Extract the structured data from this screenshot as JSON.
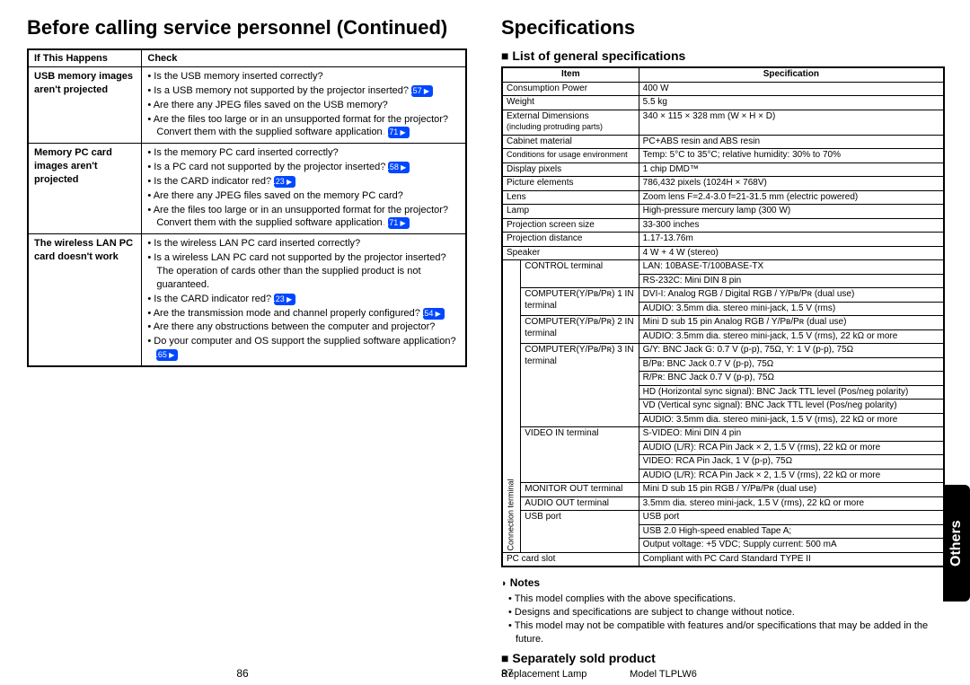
{
  "left": {
    "title": "Before calling service personnel (Continued)",
    "pageNum": "86",
    "headers": {
      "col1": "If  This Happens",
      "col2": "Check"
    },
    "rows": [
      {
        "issue": "USB memory images aren't projected",
        "checks": [
          {
            "t": "Is the USB memory inserted correctly?"
          },
          {
            "t": "Is a USB memory not supported by the projector inserted?",
            "ref": "p.57"
          },
          {
            "t": "Are there any JPEG files saved on the USB memory?"
          },
          {
            "t": "Are the files too large or in an unsupported format for the projector? Convert them with the supplied software application.",
            "ref": "p.71"
          }
        ]
      },
      {
        "issue": "Memory PC card images aren't projected",
        "checks": [
          {
            "t": "Is the memory PC card inserted correctly?"
          },
          {
            "t": "Is a PC card not supported by the projector inserted?",
            "ref": "p.58"
          },
          {
            "t": "Is the CARD indicator red?",
            "ref": "p.23"
          },
          {
            "t": "Are there any JPEG files saved on the memory PC card?"
          },
          {
            "t": "Are the files too large or in an unsupported format for the projector? Convert them with the supplied software application.",
            "ref": "p.71"
          }
        ]
      },
      {
        "issue": "The wireless LAN PC card doesn't work",
        "checks": [
          {
            "t": "Is the wireless LAN PC card inserted correctly?"
          },
          {
            "t": "Is a wireless LAN PC card not supported by the projector inserted? The operation of cards other than the supplied product is not guaranteed."
          },
          {
            "t": "Is the CARD indicator red?",
            "ref": "p.23"
          },
          {
            "t": "Are the transmission mode and channel properly configured?",
            "ref": "p.54"
          },
          {
            "t": "Are there any obstructions between the computer and projector?"
          },
          {
            "t": "Do your computer and OS support the supplied software application?",
            "ref": "p.65"
          }
        ]
      }
    ]
  },
  "right": {
    "title": "Specifications",
    "pageNum": "87",
    "tab": "Others",
    "sub1": "List of general specifications",
    "headers": {
      "col1": "Item",
      "col2": "Specification"
    },
    "rows": [
      {
        "i": "Consumption Power",
        "v": "400 W"
      },
      {
        "i": "Weight",
        "v": "5.5 kg"
      },
      {
        "i": "External Dimensions",
        "isub": "(including protruding parts)",
        "v": "340 × 115 × 328 mm (W × H × D)"
      },
      {
        "i": "Cabinet material",
        "v": "PC+ABS resin and ABS resin"
      },
      {
        "i": "Conditions for usage environment",
        "small": true,
        "v": "Temp: 5°C to 35°C; relative humidity: 30% to 70%"
      },
      {
        "i": "Display pixels",
        "v": "1 chip DMD™"
      },
      {
        "i": "Picture elements",
        "v": "786,432 pixels (1024H × 768V)"
      },
      {
        "i": "Lens",
        "v": "Zoom lens      F=2.4-3.0   f=21-31.5 mm (electric powered)"
      },
      {
        "i": "Lamp",
        "v": "High-pressure mercury lamp (300 W)"
      },
      {
        "i": "Projection screen size",
        "v": "33-300 inches"
      },
      {
        "i": "Projection distance",
        "v": "1.17-13.76m"
      },
      {
        "i": "Speaker",
        "v": "4 W + 4 W (stereo)"
      }
    ],
    "connLabel": "Connection terminal",
    "conn": [
      {
        "i": "CONTROL terminal",
        "v": [
          "LAN: 10BASE-T/100BASE-TX",
          "RS-232C: Mini DIN 8 pin"
        ]
      },
      {
        "i": "COMPUTER(Y/Pʙ/Pʀ) 1 IN terminal",
        "v": [
          "DVI-I: Analog RGB / Digital RGB / Y/Pʙ/Pʀ (dual use)",
          "AUDIO: 3.5mm dia. stereo mini-jack, 1.5 V (rms)"
        ]
      },
      {
        "i": "COMPUTER(Y/Pʙ/Pʀ) 2 IN terminal",
        "v": [
          "Mini D sub 15 pin  Analog RGB / Y/Pʙ/Pʀ (dual use)",
          "AUDIO: 3.5mm dia. stereo mini-jack, 1.5 V (rms), 22 kΩ or more"
        ]
      },
      {
        "i": "COMPUTER(Y/Pʙ/Pʀ) 3 IN terminal",
        "v": [
          "G/Y: BNC Jack  G: 0.7 V (p-p), 75Ω, Y: 1 V (p-p), 75Ω",
          "B/Pʙ: BNC Jack  0.7 V (p-p), 75Ω",
          "R/Pʀ: BNC Jack  0.7 V (p-p), 75Ω",
          "HD (Horizontal sync signal): BNC Jack  TTL level (Pos/neg polarity)",
          "VD (Vertical sync signal): BNC Jack  TTL level (Pos/neg polarity)",
          "AUDIO: 3.5mm dia. stereo mini-jack, 1.5 V (rms), 22 kΩ or more"
        ]
      },
      {
        "i": "VIDEO IN terminal",
        "v": [
          "S-VIDEO: Mini DIN 4 pin",
          "AUDIO (L/R): RCA Pin Jack × 2, 1.5 V (rms), 22 kΩ or more",
          "VIDEO: RCA Pin Jack, 1 V (p-p), 75Ω",
          "AUDIO (L/R): RCA Pin Jack × 2, 1.5 V (rms), 22 kΩ or more"
        ]
      },
      {
        "i": "MONITOR OUT terminal",
        "v": [
          "Mini D sub 15 pin  RGB / Y/Pʙ/Pʀ (dual use)"
        ]
      },
      {
        "i": "AUDIO OUT terminal",
        "v": [
          "3.5mm dia. stereo mini-jack, 1.5 V (rms), 22 kΩ or more"
        ]
      },
      {
        "i": "USB port",
        "v": [
          "USB port",
          "USB 2.0 High-speed enabled Tape A;",
          "Output voltage: +5 VDC; Supply current: 500 mA"
        ]
      }
    ],
    "lastRow": {
      "i": "PC card slot",
      "v": "Compliant with PC Card Standard TYPE II"
    },
    "notesTitle": "Notes",
    "notes": [
      "This model complies with the above specifications.",
      "Designs and specifications are subject to change without notice.",
      "This model may not be compatible with features and/or specifications that may be added in the future."
    ],
    "sub2": "Separately sold product",
    "sep": {
      "label": "Replacement Lamp",
      "model": "Model TLPLW6"
    }
  }
}
